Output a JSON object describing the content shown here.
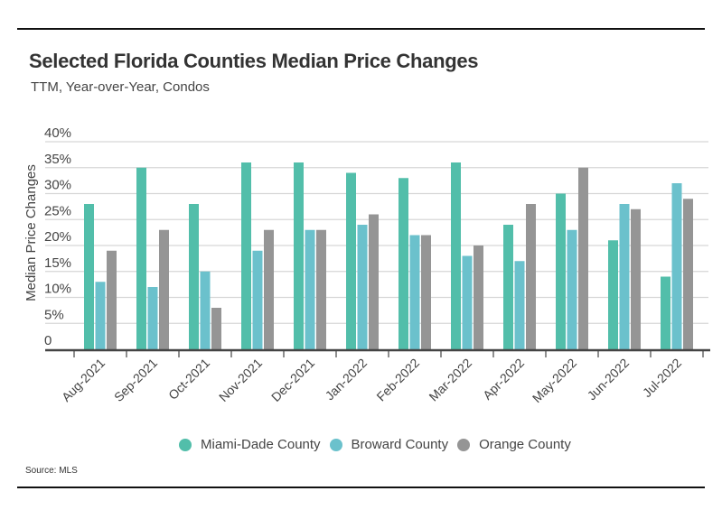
{
  "header": {
    "title": "Selected Florida Counties Median Price Changes",
    "subtitle": "TTM, Year-over-Year, Condos"
  },
  "footer": {
    "source": "Source:  MLS"
  },
  "chart_data": {
    "type": "bar",
    "title": "Selected Florida Counties Median Price Changes",
    "subtitle": "TTM, Year-over-Year, Condos",
    "xlabel": "",
    "ylabel": "Median Price Changes",
    "ylim": [
      0,
      40
    ],
    "yticks": [
      0,
      5,
      10,
      15,
      20,
      25,
      30,
      35,
      40
    ],
    "ytick_labels": [
      "0",
      "5%",
      "10%",
      "15%",
      "20%",
      "25%",
      "30%",
      "35%",
      "40%"
    ],
    "grid": true,
    "legend_position": "bottom",
    "categories": [
      "Aug-2021",
      "Sep-2021",
      "Oct-2021",
      "Nov-2021",
      "Dec-2021",
      "Jan-2022",
      "Feb-2022",
      "Mar-2022",
      "Apr-2022",
      "May-2022",
      "Jun-2022",
      "Jul-2022"
    ],
    "series": [
      {
        "name": "Miami-Dade County",
        "color": "#52BEAA",
        "values": [
          28,
          35,
          28,
          36,
          36,
          34,
          33,
          36,
          24,
          30,
          21,
          14
        ]
      },
      {
        "name": "Broward County",
        "color": "#6BC1CC",
        "values": [
          13,
          12,
          15,
          19,
          23,
          24,
          22,
          18,
          17,
          23,
          28,
          32
        ]
      },
      {
        "name": "Orange County",
        "color": "#959595",
        "values": [
          19,
          23,
          8,
          23,
          23,
          26,
          22,
          20,
          28,
          35,
          27,
          29
        ]
      }
    ]
  }
}
